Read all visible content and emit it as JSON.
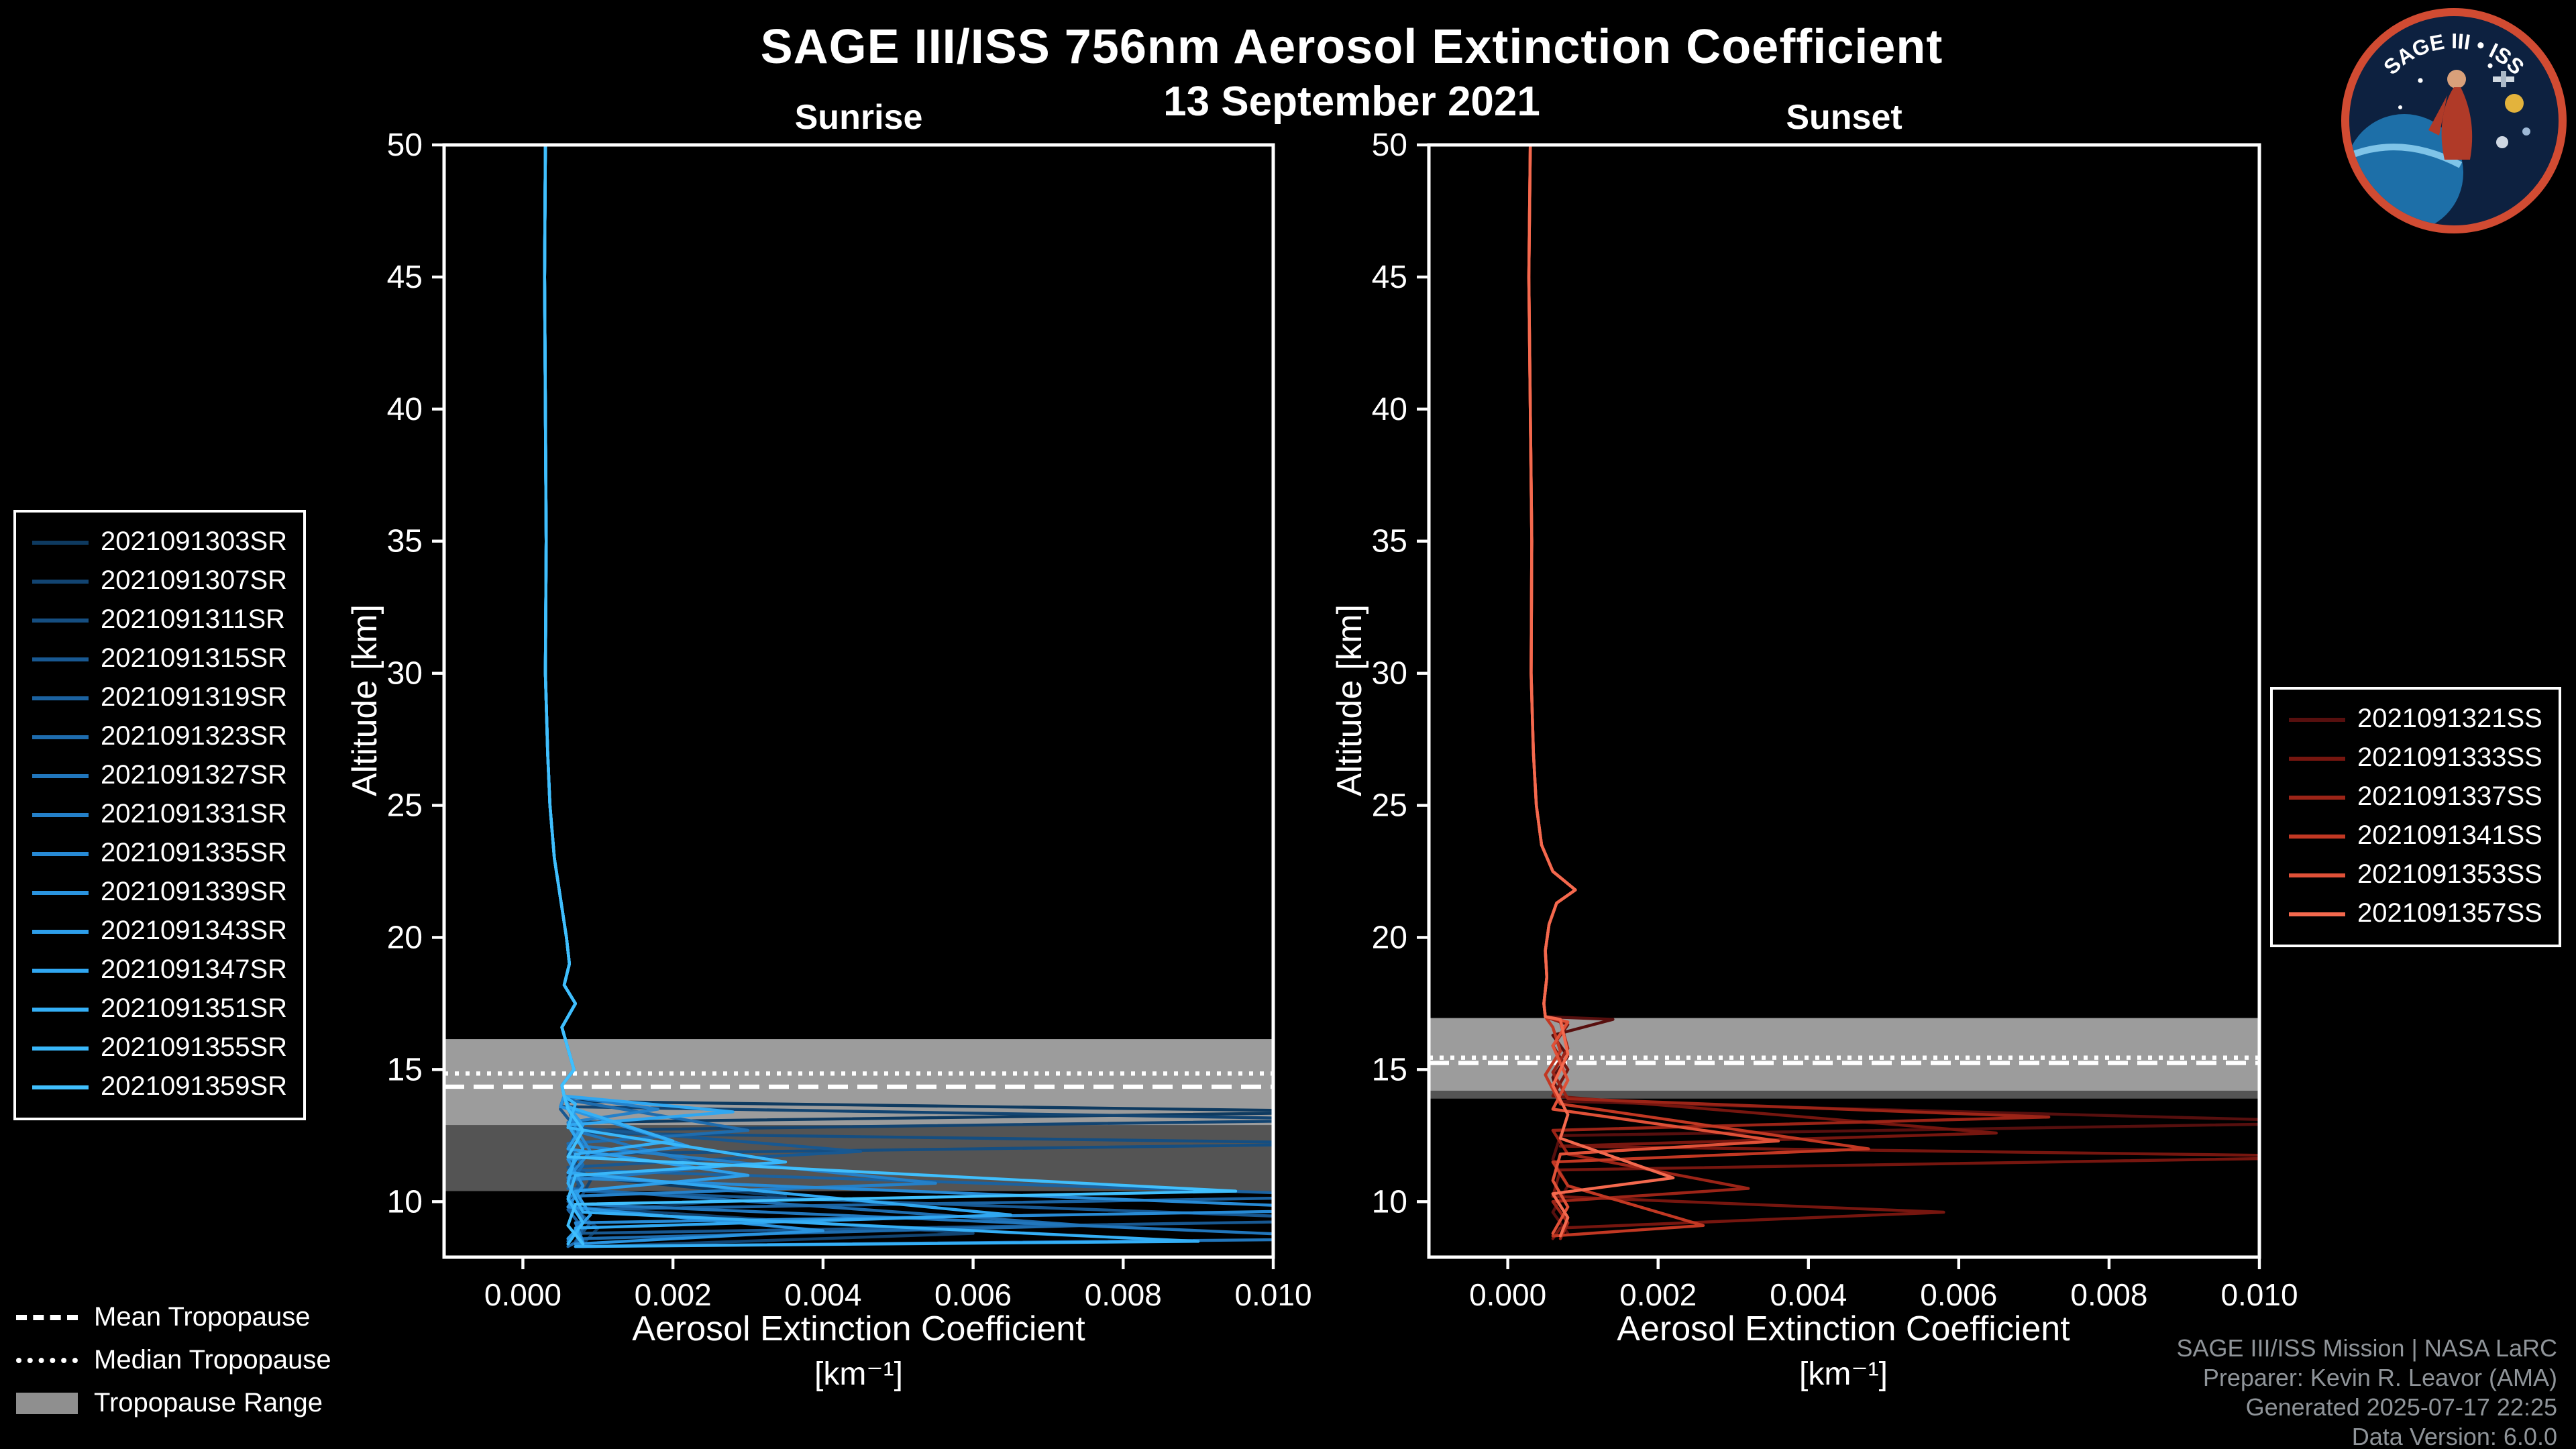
{
  "colors": {
    "background": "#000000",
    "text": "#ffffff",
    "credits_text": "#8f9499",
    "band": "#a0a0a0",
    "band_dim": "#707070",
    "tropopause_line": "#ffffff",
    "logo_ring": "#d14b32"
  },
  "header": {
    "title": "SAGE III/ISS 756nm Aerosol Extinction Coefficient",
    "date": "13 September 2021"
  },
  "logo": {
    "title": "SAGE III • ISS"
  },
  "tropopause_legend": {
    "mean_label": "Mean Tropopause",
    "median_label": "Median Tropopause",
    "range_label": "Tropopause Range"
  },
  "footer": {
    "credits": [
      "SAGE III/ISS Mission | NASA LaRC",
      "Preparer: Kevin R. Leavor (AMA)",
      "Generated 2025-07-17 22:25",
      "Data Version: 6.0.0"
    ]
  },
  "chart_data": [
    {
      "type": "line",
      "title": "Sunrise",
      "xlabel": "Aerosol Extinction Coefficient",
      "xlabel2": "[km⁻¹]",
      "ylabel": "Altitude [km]",
      "xlim": [
        -0.00105,
        0.01
      ],
      "ylim": [
        7.9,
        50
      ],
      "grid": false,
      "legend_position": "left",
      "xticks": {
        "values": [
          0,
          0.002,
          0.004,
          0.006,
          0.008,
          0.01
        ],
        "labels": [
          "0.000",
          "0.002",
          "0.004",
          "0.006",
          "0.008",
          "0.010"
        ]
      },
      "yticks": {
        "values": [
          10,
          15,
          20,
          25,
          30,
          35,
          40,
          45,
          50
        ],
        "labels": [
          "10",
          "15",
          "20",
          "25",
          "30",
          "35",
          "40",
          "45",
          "50"
        ]
      },
      "tropopause": {
        "mean": 14.35,
        "median": 14.85,
        "range": [
          10.4,
          16.15
        ],
        "range_core": [
          12.9,
          16.15
        ]
      },
      "base_profile": [
        [
          50,
          0.0003
        ],
        [
          45,
          0.00029
        ],
        [
          40,
          0.0003
        ],
        [
          35,
          0.00031
        ],
        [
          30,
          0.0003
        ],
        [
          27,
          0.00033
        ],
        [
          25,
          0.00036
        ],
        [
          23,
          0.00042
        ],
        [
          21.5,
          0.0005
        ],
        [
          20,
          0.00058
        ],
        [
          19,
          0.00062
        ],
        [
          18.2,
          0.00055
        ],
        [
          17.5,
          0.0007
        ],
        [
          16.6,
          0.00052
        ],
        [
          15.8,
          0.0006
        ],
        [
          15.0,
          0.00068
        ],
        [
          14.4,
          0.00052
        ],
        [
          14.0,
          0.00055
        ]
      ],
      "series": [
        {
          "name": "2021091303SR",
          "color": "#0e3a60",
          "lower": [
            [
              13.8,
              0.0006
            ],
            [
              13.4,
              0.0115
            ],
            [
              13.0,
              0.0006
            ],
            [
              12.0,
              0.0008
            ],
            [
              11.0,
              0.0006
            ],
            [
              10.2,
              0.0035
            ],
            [
              9.6,
              0.0007
            ],
            [
              9.0,
              0.001
            ],
            [
              8.4,
              0.0008
            ]
          ]
        },
        {
          "name": "2021091307SR",
          "color": "#124471",
          "lower": [
            [
              13.6,
              0.0005
            ],
            [
              13.1,
              0.0115
            ],
            [
              12.7,
              0.0007
            ],
            [
              11.8,
              0.0006
            ],
            [
              10.8,
              0.0009
            ],
            [
              9.8,
              0.0007
            ],
            [
              8.8,
              0.006
            ],
            [
              8.3,
              0.0009
            ]
          ]
        },
        {
          "name": "2021091311SR",
          "color": "#154e81",
          "lower": [
            [
              13.7,
              0.0006
            ],
            [
              12.6,
              0.0007
            ],
            [
              12.2,
              0.0115
            ],
            [
              11.8,
              0.0006
            ],
            [
              10.9,
              0.0008
            ],
            [
              10.0,
              0.0006
            ],
            [
              9.2,
              0.0009
            ],
            [
              8.5,
              0.0007
            ]
          ]
        },
        {
          "name": "2021091315SR",
          "color": "#185891",
          "lower": [
            [
              13.5,
              0.0005
            ],
            [
              12.8,
              0.0007
            ],
            [
              11.9,
              0.0045
            ],
            [
              11.3,
              0.0006
            ],
            [
              10.4,
              0.0008
            ],
            [
              9.3,
              0.0115
            ],
            [
              8.8,
              0.0007
            ],
            [
              8.3,
              0.0008
            ]
          ]
        },
        {
          "name": "2021091319SR",
          "color": "#1b62a0",
          "lower": [
            [
              13.6,
              0.0006
            ],
            [
              12.9,
              0.0008
            ],
            [
              12.1,
              0.0006
            ],
            [
              11.2,
              0.0007
            ],
            [
              10.2,
              0.0115
            ],
            [
              9.7,
              0.0006
            ],
            [
              9.0,
              0.0008
            ],
            [
              8.4,
              0.0007
            ]
          ]
        },
        {
          "name": "2021091323SR",
          "color": "#1e6cae",
          "lower": [
            [
              13.8,
              0.0007
            ],
            [
              12.7,
              0.003
            ],
            [
              12.2,
              0.0006
            ],
            [
              11.4,
              0.0008
            ],
            [
              10.5,
              0.0006
            ],
            [
              9.1,
              0.0075
            ],
            [
              8.6,
              0.0008
            ],
            [
              8.3,
              0.0006
            ]
          ]
        },
        {
          "name": "2021091327SR",
          "color": "#2176bc",
          "lower": [
            [
              13.5,
              0.0006
            ],
            [
              12.6,
              0.0008
            ],
            [
              11.3,
              0.0025
            ],
            [
              10.8,
              0.0006
            ],
            [
              9.9,
              0.0008
            ],
            [
              8.6,
              0.0115
            ],
            [
              8.3,
              0.0007
            ]
          ]
        },
        {
          "name": "2021091331SR",
          "color": "#2480c9",
          "lower": [
            [
              13.5,
              0.0018
            ],
            [
              13.0,
              0.0006
            ],
            [
              12.1,
              0.0008
            ],
            [
              10.7,
              0.0055
            ],
            [
              10.2,
              0.0006
            ],
            [
              9.4,
              0.0008
            ],
            [
              8.5,
              0.0006
            ]
          ]
        },
        {
          "name": "2021091335SR",
          "color": "#278ad5",
          "lower": [
            [
              13.7,
              0.0006
            ],
            [
              12.8,
              0.0007
            ],
            [
              11.9,
              0.0009
            ],
            [
              10.9,
              0.0006
            ],
            [
              9.7,
              0.0115
            ],
            [
              9.2,
              0.0007
            ],
            [
              8.5,
              0.0008
            ]
          ]
        },
        {
          "name": "2021091339SR",
          "color": "#2a94e0",
          "lower": [
            [
              13.6,
              0.0005
            ],
            [
              12.1,
              0.0022
            ],
            [
              11.6,
              0.0006
            ],
            [
              10.6,
              0.0008
            ],
            [
              9.8,
              0.0006
            ],
            [
              8.9,
              0.004
            ],
            [
              8.4,
              0.0007
            ]
          ]
        },
        {
          "name": "2021091343SR",
          "color": "#2d9eea",
          "lower": [
            [
              13.6,
              0.0006
            ],
            [
              12.9,
              0.0008
            ],
            [
              12.0,
              0.0006
            ],
            [
              11.0,
              0.003
            ],
            [
              10.4,
              0.0007
            ],
            [
              9.5,
              0.0009
            ],
            [
              8.6,
              0.0006
            ]
          ]
        },
        {
          "name": "2021091347SR",
          "color": "#30a7f1",
          "lower": [
            [
              13.4,
              0.0028
            ],
            [
              12.9,
              0.0006
            ],
            [
              12.0,
              0.0008
            ],
            [
              11.1,
              0.0006
            ],
            [
              9.5,
              0.0065
            ],
            [
              9.0,
              0.0007
            ],
            [
              8.4,
              0.0008
            ]
          ]
        },
        {
          "name": "2021091351SR",
          "color": "#34aff6",
          "lower": [
            [
              13.6,
              0.0006
            ],
            [
              12.3,
              0.002
            ],
            [
              11.8,
              0.0007
            ],
            [
              10.7,
              0.0006
            ],
            [
              9.6,
              0.0008
            ],
            [
              8.5,
              0.009
            ],
            [
              8.3,
              0.0007
            ]
          ]
        },
        {
          "name": "2021091355SR",
          "color": "#39b7fa",
          "lower": [
            [
              13.7,
              0.0007
            ],
            [
              12.8,
              0.0006
            ],
            [
              11.5,
              0.0035
            ],
            [
              11.0,
              0.0007
            ],
            [
              10.1,
              0.0006
            ],
            [
              9.2,
              0.0008
            ],
            [
              8.4,
              0.0006
            ]
          ]
        },
        {
          "name": "2021091359SR",
          "color": "#40bffd",
          "lower": [
            [
              13.5,
              0.0006
            ],
            [
              12.7,
              0.0008
            ],
            [
              11.7,
              0.0006
            ],
            [
              10.4,
              0.0095
            ],
            [
              9.9,
              0.0007
            ],
            [
              9.1,
              0.0006
            ],
            [
              8.4,
              0.0008
            ]
          ]
        }
      ]
    },
    {
      "type": "line",
      "title": "Sunset",
      "xlabel": "Aerosol Extinction Coefficient",
      "xlabel2": "[km⁻¹]",
      "ylabel": "Altitude [km]",
      "xlim": [
        -0.00105,
        0.01
      ],
      "ylim": [
        7.9,
        50
      ],
      "grid": false,
      "legend_position": "right",
      "xticks": {
        "values": [
          0,
          0.002,
          0.004,
          0.006,
          0.008,
          0.01
        ],
        "labels": [
          "0.000",
          "0.002",
          "0.004",
          "0.006",
          "0.008",
          "0.010"
        ]
      },
      "yticks": {
        "values": [
          10,
          15,
          20,
          25,
          30,
          35,
          40,
          45,
          50
        ],
        "labels": [
          "10",
          "15",
          "20",
          "25",
          "30",
          "35",
          "40",
          "45",
          "50"
        ]
      },
      "tropopause": {
        "mean": 15.25,
        "median": 15.45,
        "range": [
          13.9,
          16.95
        ],
        "range_core": [
          14.2,
          16.95
        ]
      },
      "base_profile": [
        [
          50,
          0.0003
        ],
        [
          45,
          0.00028
        ],
        [
          40,
          0.0003
        ],
        [
          35,
          0.00032
        ],
        [
          30,
          0.00031
        ],
        [
          27,
          0.00034
        ],
        [
          25,
          0.00038
        ],
        [
          23.5,
          0.00045
        ],
        [
          22.5,
          0.0006
        ],
        [
          21.8,
          0.0009
        ],
        [
          21.3,
          0.00065
        ],
        [
          20.5,
          0.00055
        ],
        [
          19.5,
          0.0005
        ],
        [
          18.5,
          0.00052
        ],
        [
          17.5,
          0.00048
        ],
        [
          17.0,
          0.0005
        ]
      ],
      "series": [
        {
          "name": "2021091321SS",
          "color": "#570f0e",
          "lower": [
            [
              16.9,
              0.0014
            ],
            [
              16.3,
              0.0006
            ],
            [
              15.5,
              0.0008
            ],
            [
              14.7,
              0.0006
            ],
            [
              13.8,
              0.0007
            ],
            [
              13.0,
              0.0115
            ],
            [
              12.5,
              0.0007
            ],
            [
              11.6,
              0.0006
            ],
            [
              10.6,
              0.0008
            ],
            [
              9.6,
              0.0006
            ],
            [
              8.8,
              0.0008
            ]
          ]
        },
        {
          "name": "2021091333SS",
          "color": "#76160f",
          "lower": [
            [
              16.7,
              0.0008
            ],
            [
              15.9,
              0.0006
            ],
            [
              15.0,
              0.0008
            ],
            [
              14.0,
              0.0006
            ],
            [
              12.6,
              0.0065
            ],
            [
              12.1,
              0.0007
            ],
            [
              11.7,
              0.0115
            ],
            [
              11.2,
              0.0007
            ],
            [
              10.2,
              0.0006
            ],
            [
              9.6,
              0.0058
            ],
            [
              9.0,
              0.0007
            ],
            [
              8.6,
              0.0006
            ]
          ]
        },
        {
          "name": "2021091337SS",
          "color": "#9c2417",
          "lower": [
            [
              16.8,
              0.0007
            ],
            [
              15.8,
              0.0008
            ],
            [
              14.9,
              0.0006
            ],
            [
              13.9,
              0.0008
            ],
            [
              13.2,
              0.0072
            ],
            [
              12.7,
              0.0006
            ],
            [
              11.8,
              0.0008
            ],
            [
              10.5,
              0.0032
            ],
            [
              10.0,
              0.0006
            ],
            [
              9.2,
              0.0008
            ],
            [
              8.6,
              0.0007
            ]
          ]
        },
        {
          "name": "2021091341SS",
          "color": "#c23823",
          "lower": [
            [
              16.6,
              0.0006
            ],
            [
              15.7,
              0.0007
            ],
            [
              14.8,
              0.0005
            ],
            [
              13.7,
              0.0007
            ],
            [
              12.0,
              0.0048
            ],
            [
              11.5,
              0.0006
            ],
            [
              10.6,
              0.0008
            ],
            [
              9.1,
              0.0026
            ],
            [
              8.7,
              0.0006
            ]
          ]
        },
        {
          "name": "2021091353SS",
          "color": "#e05138",
          "lower": [
            [
              16.8,
              0.0008
            ],
            [
              15.9,
              0.0006
            ],
            [
              14.6,
              0.0008
            ],
            [
              13.5,
              0.0006
            ],
            [
              12.3,
              0.0036
            ],
            [
              11.8,
              0.0007
            ],
            [
              10.8,
              0.0006
            ],
            [
              9.8,
              0.0008
            ],
            [
              8.8,
              0.0006
            ]
          ]
        },
        {
          "name": "2021091357SS",
          "color": "#f4694e",
          "lower": [
            [
              16.9,
              0.0007
            ],
            [
              15.6,
              0.0008
            ],
            [
              14.4,
              0.0006
            ],
            [
              13.3,
              0.0008
            ],
            [
              12.4,
              0.0007
            ],
            [
              10.9,
              0.0022
            ],
            [
              10.3,
              0.0006
            ],
            [
              9.4,
              0.0008
            ],
            [
              8.7,
              0.0007
            ]
          ]
        }
      ]
    }
  ]
}
